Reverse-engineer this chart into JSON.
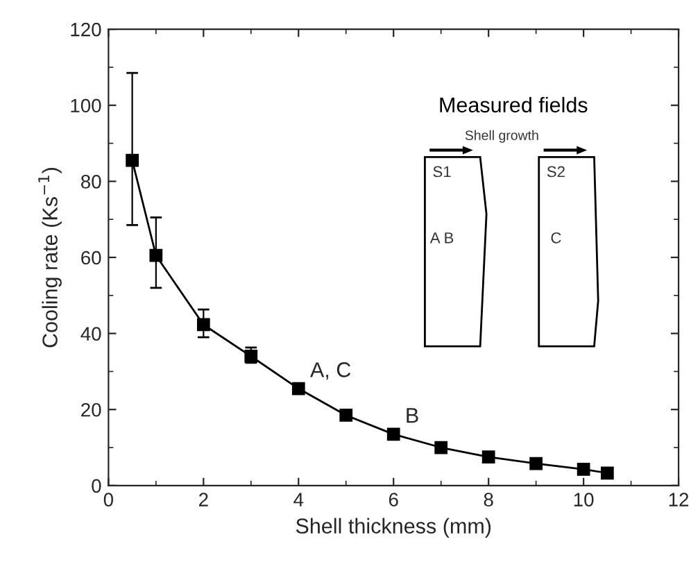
{
  "chart_data": {
    "type": "line",
    "xlabel": "Shell thickness (mm)",
    "ylabel": "Cooling rate (Ks$^{−1}$)",
    "x": [
      0.5,
      1,
      2,
      3,
      4,
      5,
      6,
      7,
      8,
      9,
      10,
      10.5
    ],
    "series": [
      {
        "color": "#000000",
        "values": [
          85.5,
          60.5,
          42.3,
          34,
          25.5,
          18.5,
          13.5,
          10,
          7.5,
          5.8,
          4.3,
          3.3
        ],
        "errors": [
          [
            68.5,
            108.5
          ],
          [
            52,
            70.5
          ],
          [
            39,
            46.3
          ],
          [
            32.3,
            36.3
          ],
          [
            24.5,
            26.5
          ],
          null,
          null,
          null,
          null,
          null,
          null,
          null
        ]
      }
    ],
    "marker": "square",
    "line_style": "solid",
    "xlim": [
      0,
      12
    ],
    "ylim": [
      0,
      120
    ],
    "xticks": [
      0,
      2,
      4,
      6,
      8,
      10,
      12
    ],
    "yticks": [
      0,
      20,
      40,
      60,
      80,
      100,
      120
    ],
    "annotations": [
      {
        "text": "A, C",
        "x": 4,
        "y": 25.5
      },
      {
        "text": "B",
        "x": 6,
        "y": 13.5
      },
      "Measured fields",
      "Shell growth",
      "S1",
      "A B",
      "S2",
      "C"
    ]
  }
}
